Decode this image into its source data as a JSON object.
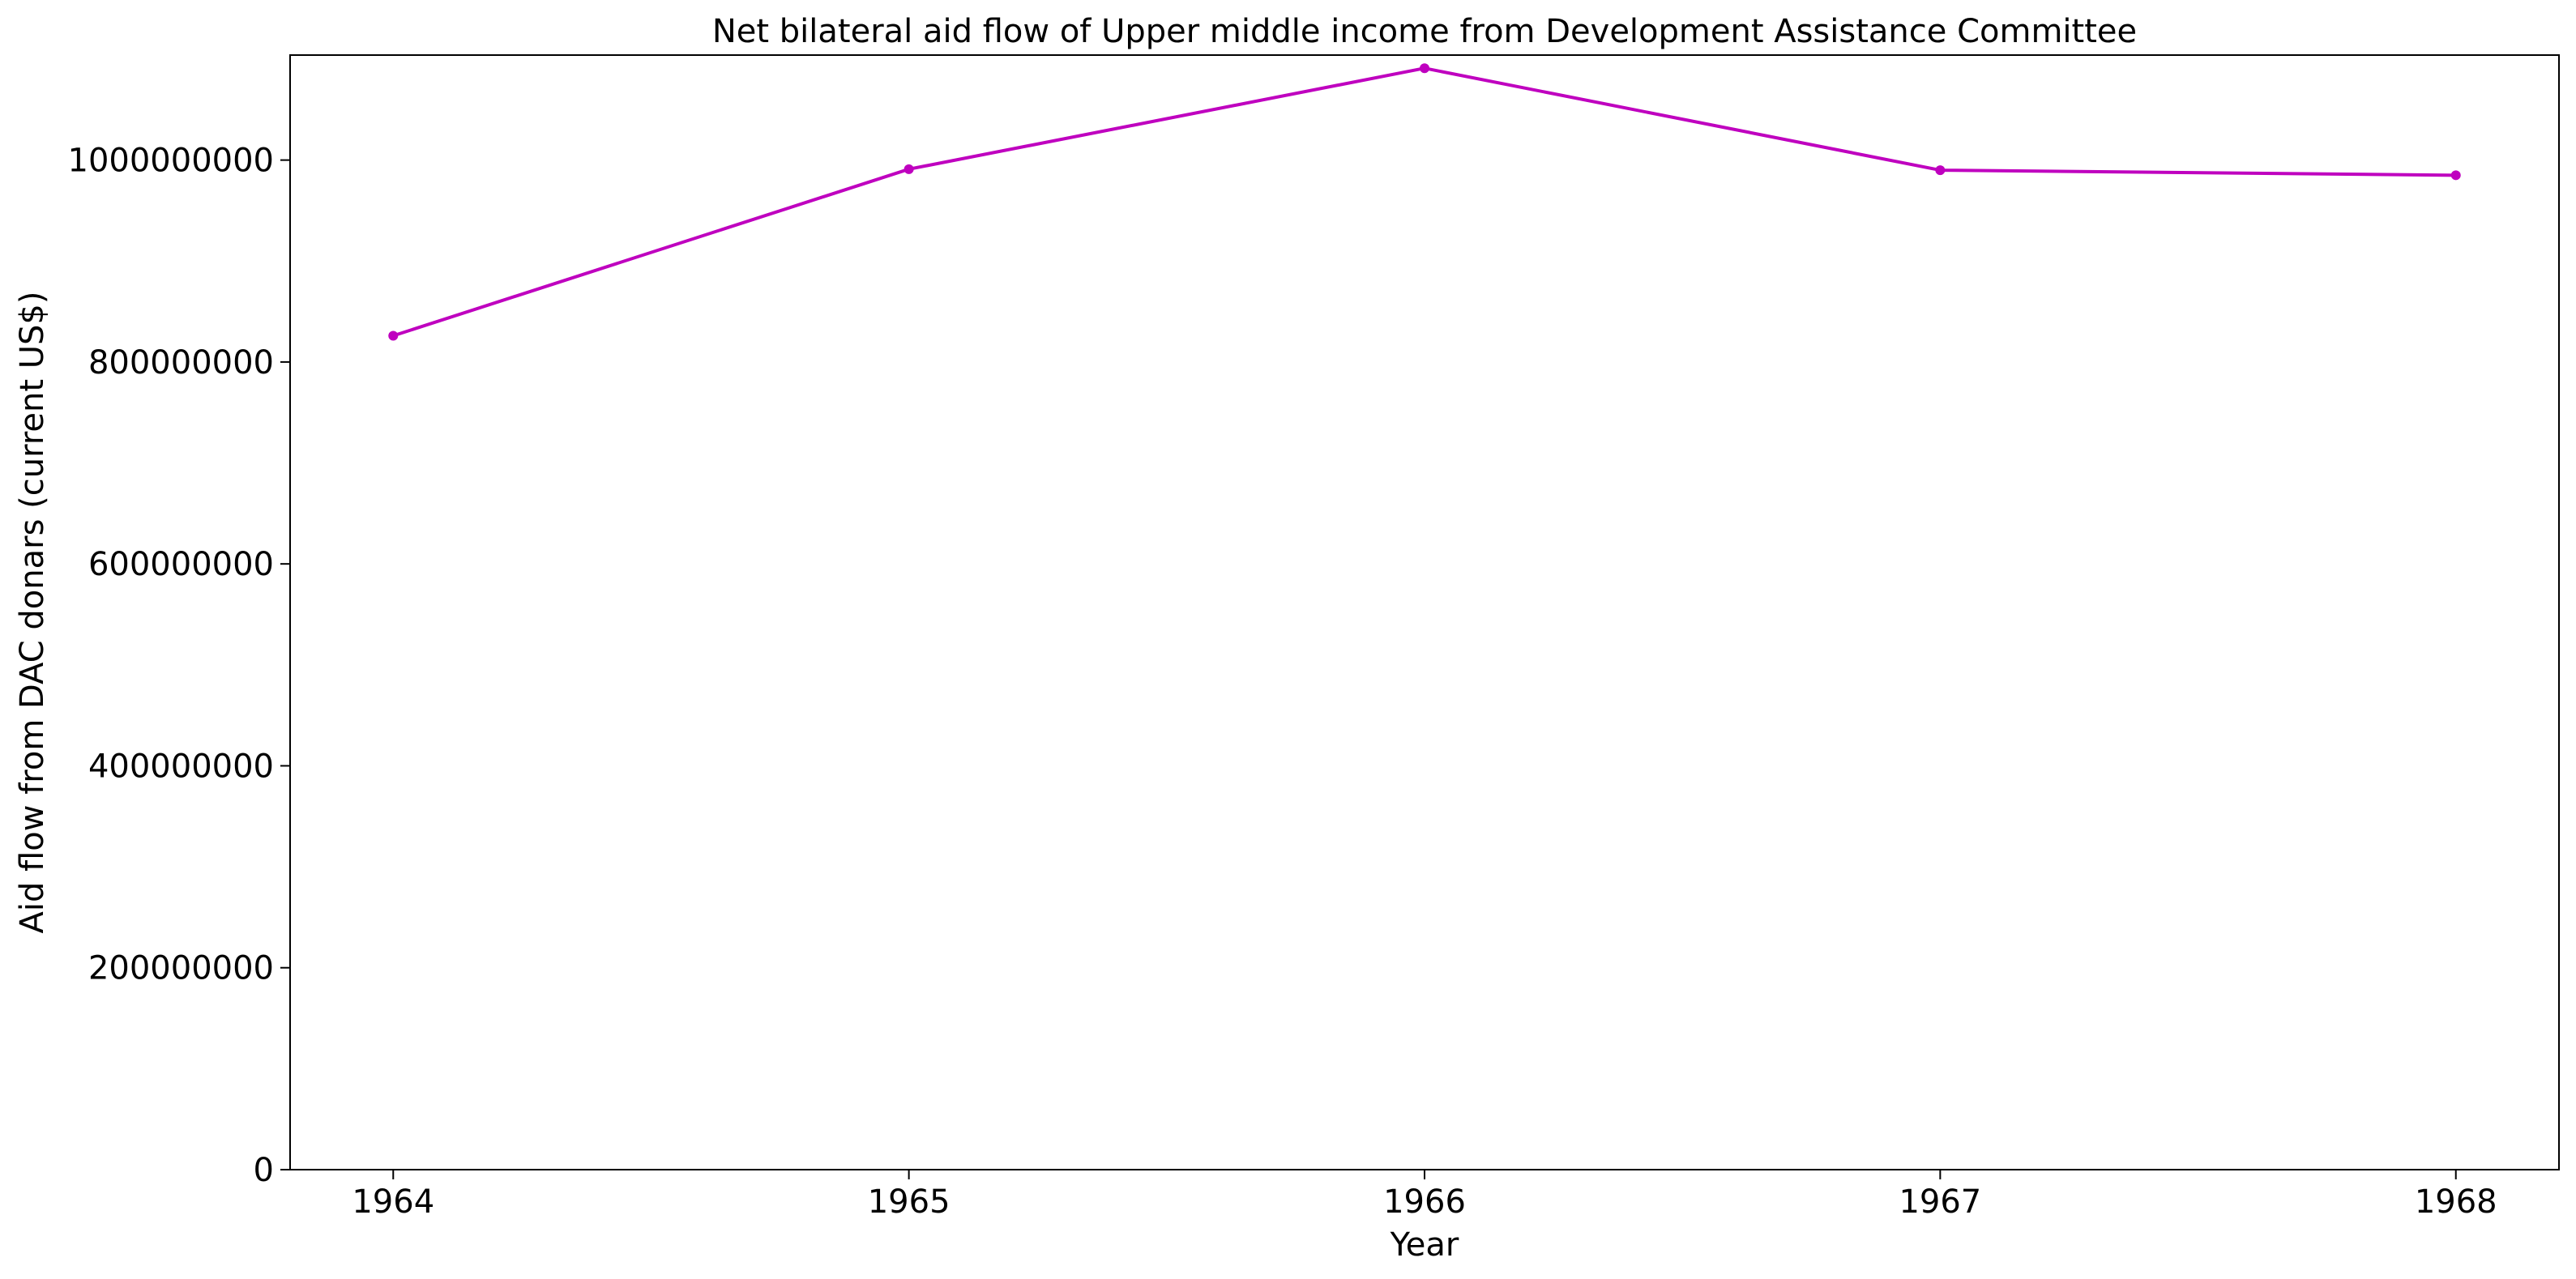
{
  "chart_data": {
    "type": "line",
    "title": "Net bilateral aid flow of Upper middle income from Development Assistance Committee",
    "xlabel": "Year",
    "ylabel": "Aid flow from DAC donars (current US$)",
    "x": [
      "1964",
      "1965",
      "1966",
      "1967",
      "1968"
    ],
    "series": [
      {
        "values": [
          826000000,
          991000000,
          1091000000,
          990000000,
          985000000
        ],
        "color": "#bf00bf"
      }
    ],
    "yticks": [
      "0",
      "200000000",
      "400000000",
      "600000000",
      "800000000",
      "1000000000"
    ],
    "ylim": [
      0,
      1104000000
    ],
    "xlim": [
      1963.8,
      1968.2
    ],
    "grid": false,
    "legend": false
  }
}
